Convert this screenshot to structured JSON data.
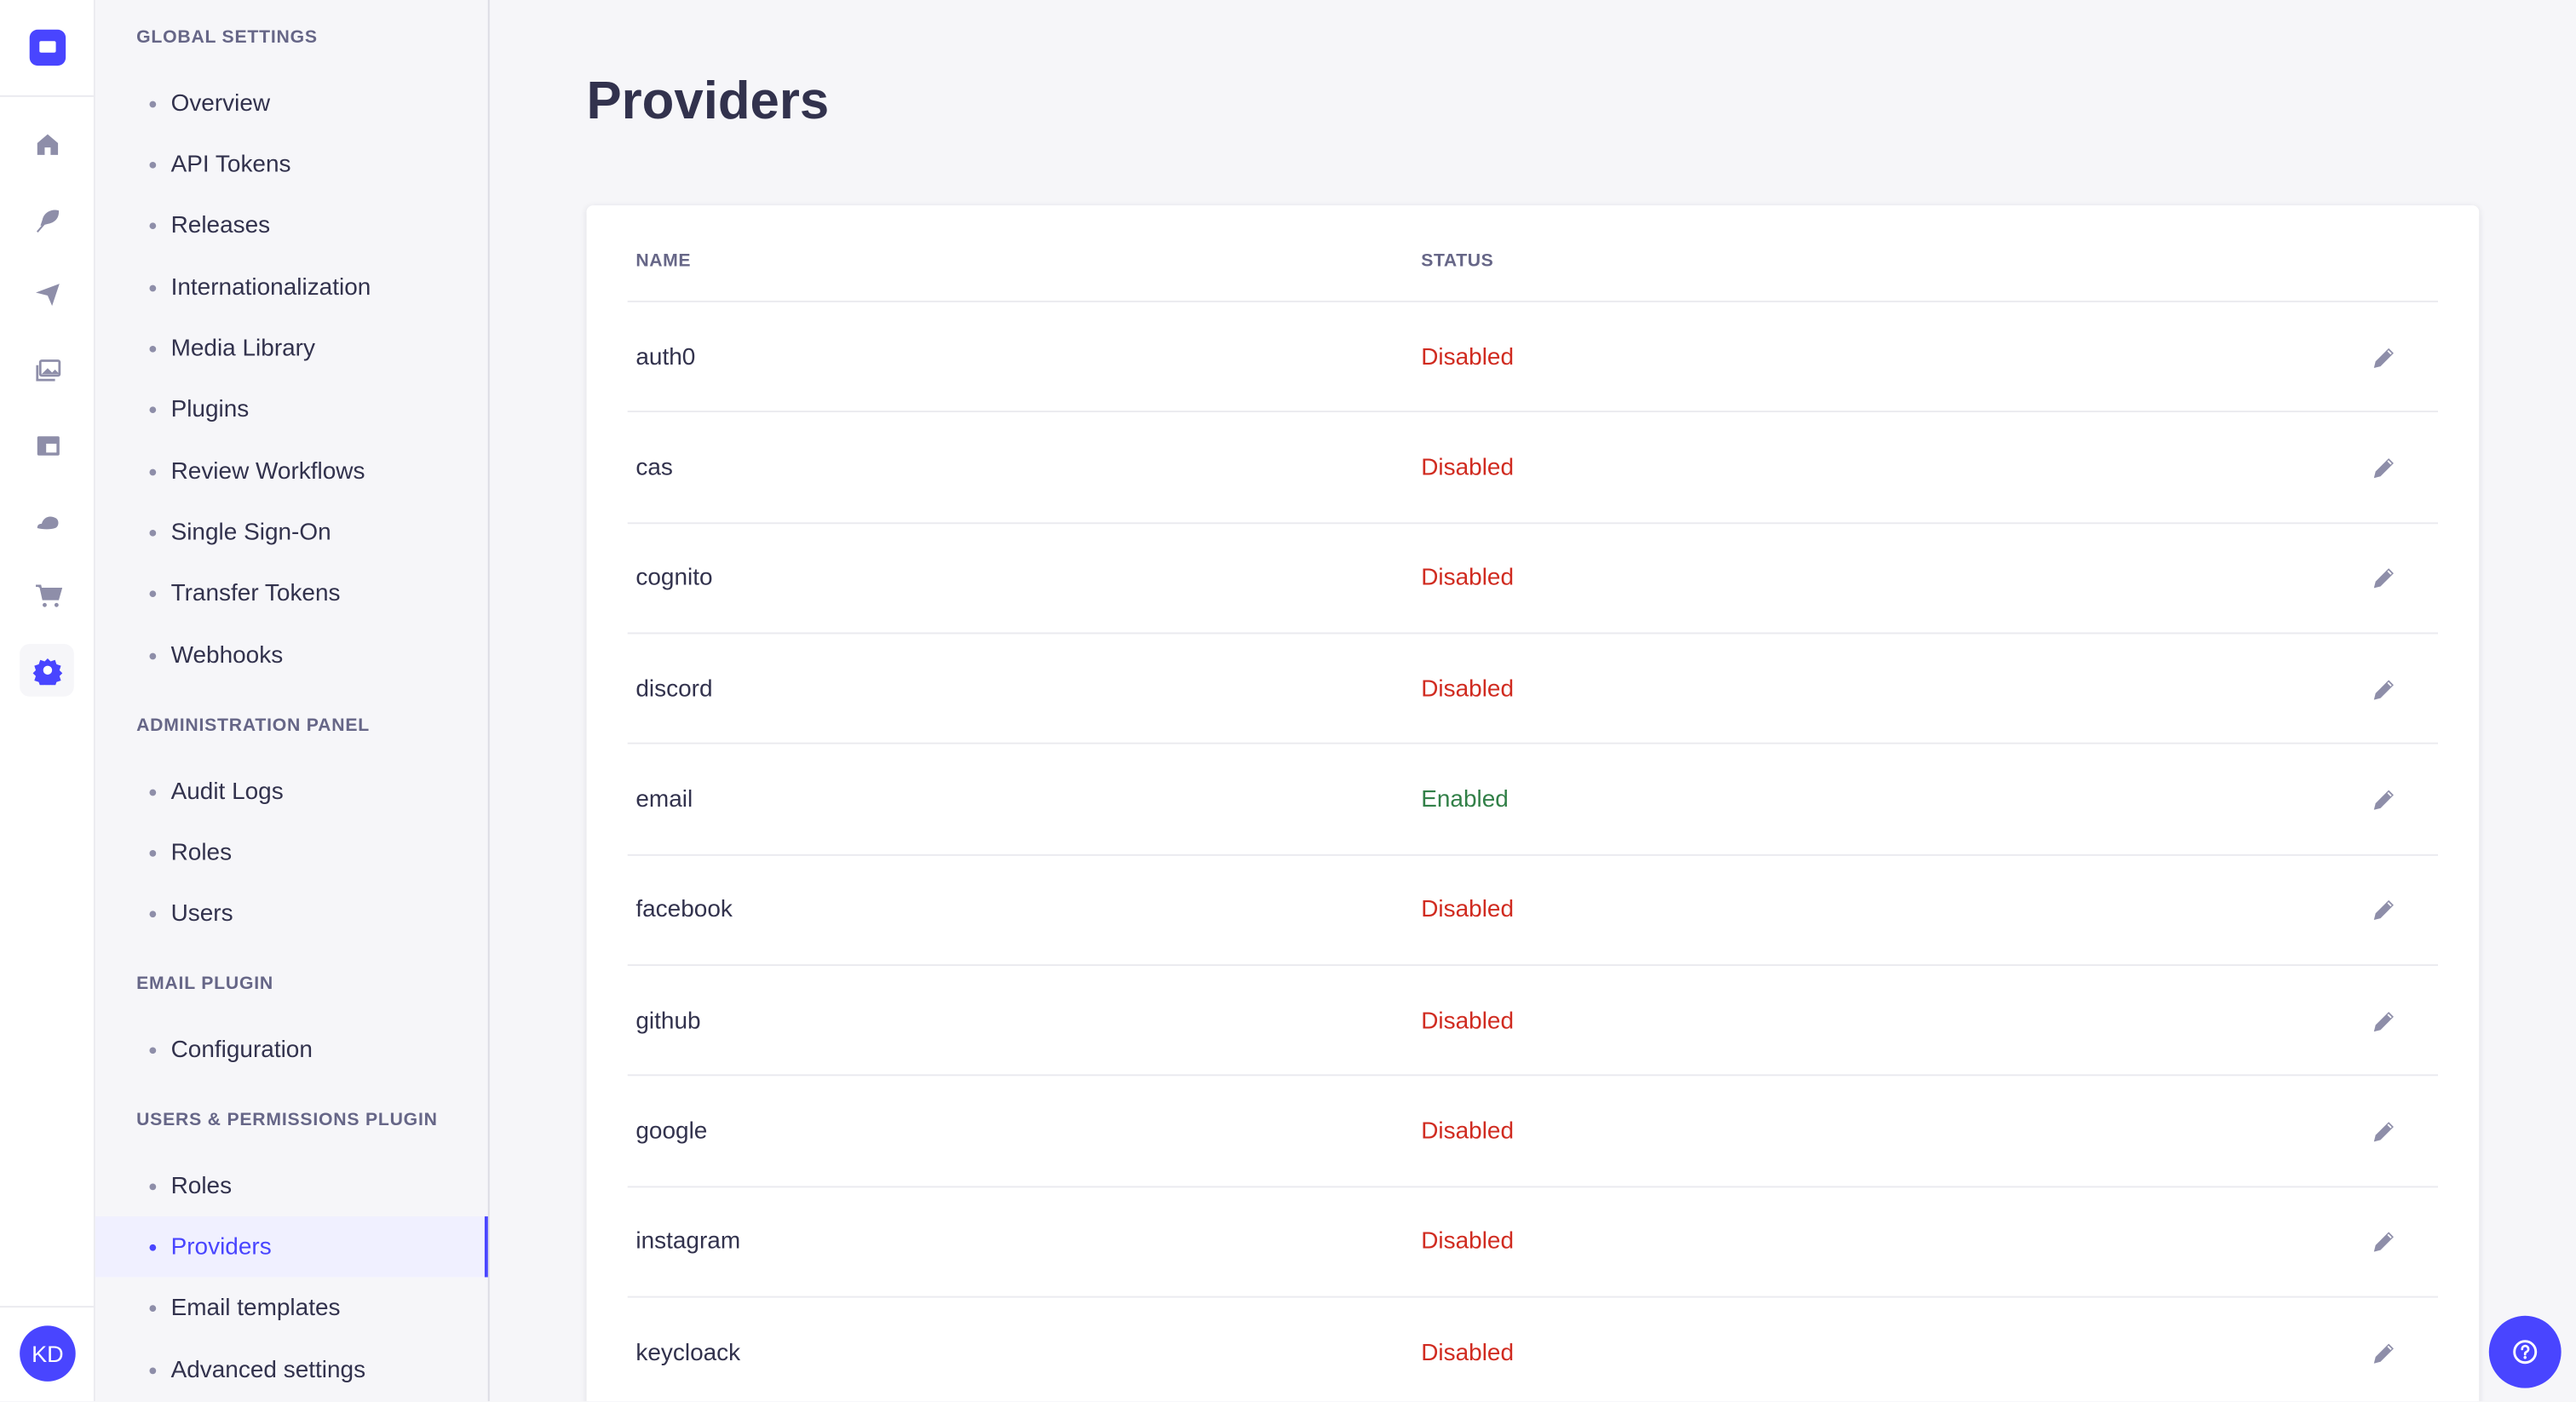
{
  "colors": {
    "accent": "#4945ff",
    "disabled": "#d02b20",
    "enabled": "#328048",
    "icon": "#8e8ea9"
  },
  "rail": {
    "icons": [
      "home-icon",
      "feather-icon",
      "paper-plane-icon",
      "images-icon",
      "layout-icon",
      "cloud-icon",
      "cart-icon",
      "gear-icon"
    ],
    "active": "gear-icon",
    "avatar": "KD"
  },
  "subnav": {
    "sections": [
      {
        "title": "Global Settings",
        "items": [
          "Overview",
          "API Tokens",
          "Releases",
          "Internationalization",
          "Media Library",
          "Plugins",
          "Review Workflows",
          "Single Sign-On",
          "Transfer Tokens",
          "Webhooks"
        ]
      },
      {
        "title": "Administration Panel",
        "items": [
          "Audit Logs",
          "Roles",
          "Users"
        ]
      },
      {
        "title": "Email Plugin",
        "items": [
          "Configuration"
        ]
      },
      {
        "title": "Users & Permissions Plugin",
        "items": [
          "Roles",
          "Providers",
          "Email templates",
          "Advanced settings"
        ]
      }
    ],
    "active_item": "Providers"
  },
  "main": {
    "title": "Providers",
    "table": {
      "columns": [
        "Name",
        "Status"
      ],
      "rows": [
        {
          "name": "auth0",
          "status": "Disabled"
        },
        {
          "name": "cas",
          "status": "Disabled"
        },
        {
          "name": "cognito",
          "status": "Disabled"
        },
        {
          "name": "discord",
          "status": "Disabled"
        },
        {
          "name": "email",
          "status": "Enabled"
        },
        {
          "name": "facebook",
          "status": "Disabled"
        },
        {
          "name": "github",
          "status": "Disabled"
        },
        {
          "name": "google",
          "status": "Disabled"
        },
        {
          "name": "instagram",
          "status": "Disabled"
        },
        {
          "name": "keycloack",
          "status": "Disabled"
        }
      ]
    }
  }
}
